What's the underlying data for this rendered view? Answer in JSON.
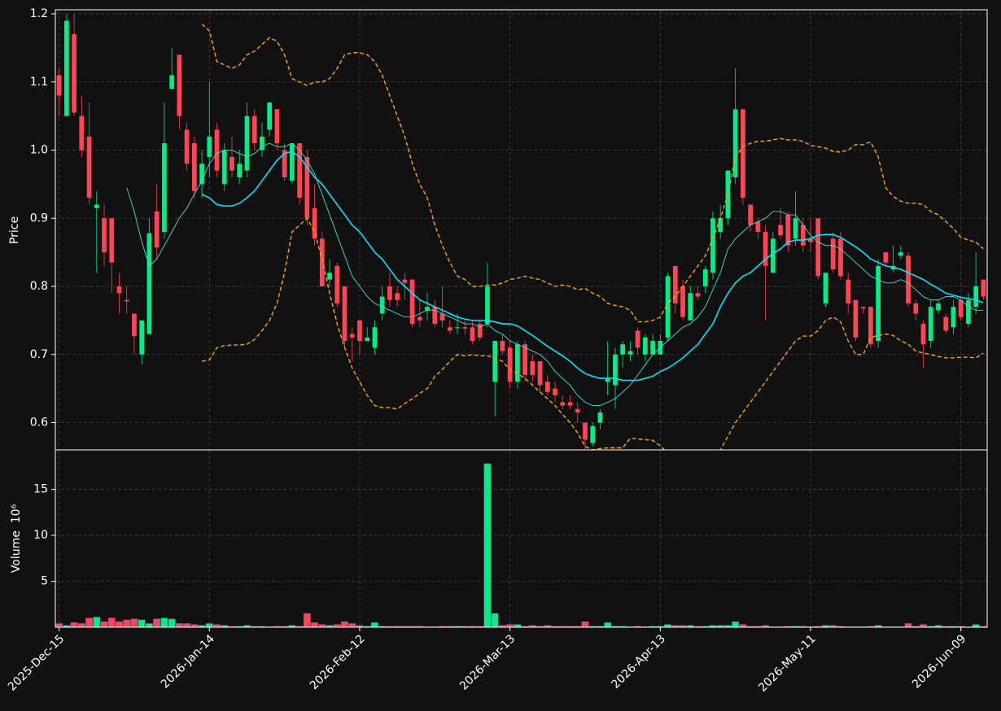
{
  "chart_data": {
    "type": "candlestick",
    "ylabel": "Price",
    "volume_ylabel": "Volume  10⁶",
    "categories": [
      "2025-Dec-15",
      null,
      null,
      null,
      null,
      null,
      null,
      null,
      null,
      null,
      null,
      null,
      null,
      null,
      null,
      null,
      null,
      null,
      null,
      null,
      "2026-Jan-14",
      null,
      null,
      null,
      null,
      null,
      null,
      null,
      null,
      null,
      null,
      null,
      null,
      null,
      null,
      null,
      null,
      null,
      null,
      null,
      "2026-Feb-12",
      null,
      null,
      null,
      null,
      null,
      null,
      null,
      null,
      null,
      null,
      null,
      null,
      null,
      null,
      null,
      null,
      null,
      null,
      null,
      "2026-Mar-13",
      null,
      null,
      null,
      null,
      null,
      null,
      null,
      null,
      null,
      null,
      null,
      null,
      null,
      null,
      null,
      null,
      null,
      null,
      null,
      "2026-Apr-13",
      null,
      null,
      null,
      null,
      null,
      null,
      null,
      null,
      null,
      null,
      null,
      null,
      null,
      null,
      null,
      null,
      null,
      null,
      null,
      "2026-May-11",
      null,
      null,
      null,
      null,
      null,
      null,
      null,
      null,
      null,
      null,
      null,
      null,
      null,
      null,
      null,
      null,
      null,
      null,
      null,
      "2026-Jun-09",
      null,
      null,
      null
    ],
    "open": [
      1.11,
      1.05,
      1.17,
      1.05,
      1.02,
      0.915,
      0.9,
      0.9,
      0.8,
      0.78,
      0.76,
      0.7,
      0.73,
      0.91,
      0.88,
      1.09,
      1.14,
      1.03,
      1.01,
      0.95,
      0.99,
      1.03,
      0.95,
      0.99,
      0.96,
      0.97,
      1.05,
      1.0,
      1.03,
      1.06,
      1.0,
      0.955,
      1.01,
      0.99,
      0.915,
      0.87,
      0.81,
      0.83,
      0.8,
      0.73,
      0.75,
      0.72,
      0.71,
      0.76,
      0.8,
      0.79,
      0.81,
      0.81,
      0.755,
      0.765,
      0.77,
      0.76,
      0.74,
      0.74,
      0.74,
      0.74,
      0.745,
      0.745,
      0.66,
      0.72,
      0.71,
      0.66,
      0.715,
      0.69,
      0.69,
      0.66,
      0.65,
      0.63,
      0.63,
      0.62,
      0.6,
      0.57,
      0.6,
      0.66,
      0.655,
      0.7,
      0.7,
      0.735,
      0.7,
      0.7,
      0.7,
      0.725,
      0.83,
      0.8,
      0.75,
      0.79,
      0.8,
      0.82,
      0.88,
      0.9,
      0.96,
      1.06,
      0.92,
      0.895,
      0.88,
      0.82,
      0.89,
      0.905,
      0.87,
      0.89,
      0.87,
      0.9,
      0.775,
      0.87,
      0.87,
      0.81,
      0.78,
      0.77,
      0.77,
      0.72,
      0.85,
      0.825,
      0.845,
      0.845,
      0.775,
      0.745,
      0.72,
      0.765,
      0.755,
      0.74,
      0.78,
      0.745,
      0.77,
      0.81
    ],
    "high": [
      1.12,
      1.2,
      1.2,
      1.08,
      1.07,
      0.94,
      0.92,
      0.9,
      0.82,
      0.8,
      0.76,
      0.75,
      0.9,
      0.95,
      1.07,
      1.15,
      1.14,
      1.04,
      1.02,
      1.0,
      1.1,
      1.04,
      1.01,
      1.02,
      1.0,
      1.07,
      1.06,
      1.04,
      1.07,
      1.06,
      1.01,
      1.01,
      1.01,
      1.0,
      0.95,
      0.88,
      0.84,
      0.835,
      0.8,
      0.74,
      0.75,
      0.74,
      0.75,
      0.8,
      0.82,
      0.8,
      0.82,
      0.81,
      0.78,
      0.79,
      0.78,
      0.8,
      0.75,
      0.76,
      0.75,
      0.75,
      0.75,
      0.835,
      0.72,
      0.73,
      0.72,
      0.72,
      0.72,
      0.7,
      0.69,
      0.67,
      0.66,
      0.64,
      0.64,
      0.63,
      0.6,
      0.6,
      0.62,
      0.72,
      0.71,
      0.72,
      0.72,
      0.74,
      0.73,
      0.73,
      0.73,
      0.82,
      0.83,
      0.81,
      0.8,
      0.8,
      0.83,
      0.91,
      0.92,
      0.97,
      1.12,
      1.06,
      0.92,
      0.9,
      0.89,
      0.88,
      0.915,
      0.91,
      0.94,
      0.9,
      0.9,
      0.9,
      0.82,
      0.88,
      0.88,
      0.82,
      0.78,
      0.77,
      0.77,
      0.84,
      0.85,
      0.86,
      0.86,
      0.85,
      0.78,
      0.75,
      0.78,
      0.78,
      0.76,
      0.78,
      0.785,
      0.79,
      0.85,
      0.81
    ],
    "low": [
      1.05,
      1.05,
      1.05,
      0.99,
      0.92,
      0.82,
      0.83,
      0.79,
      0.76,
      0.76,
      0.7,
      0.685,
      0.73,
      0.84,
      0.87,
      1.09,
      1.03,
      0.97,
      0.93,
      0.93,
      0.96,
      0.96,
      0.94,
      0.96,
      0.95,
      0.96,
      1.0,
      0.99,
      1.02,
      1.0,
      0.955,
      0.95,
      0.92,
      0.89,
      0.86,
      0.8,
      0.8,
      0.77,
      0.71,
      0.69,
      0.7,
      0.72,
      0.7,
      0.75,
      0.77,
      0.77,
      0.78,
      0.74,
      0.74,
      0.75,
      0.74,
      0.74,
      0.73,
      0.73,
      0.73,
      0.715,
      0.72,
      0.74,
      0.61,
      0.7,
      0.65,
      0.65,
      0.66,
      0.66,
      0.645,
      0.64,
      0.63,
      0.62,
      0.62,
      0.6,
      0.56,
      0.565,
      0.59,
      0.64,
      0.62,
      0.68,
      0.69,
      0.7,
      0.69,
      0.7,
      0.7,
      0.72,
      0.76,
      0.75,
      0.75,
      0.78,
      0.79,
      0.81,
      0.87,
      0.89,
      0.95,
      0.92,
      0.88,
      0.87,
      0.75,
      0.82,
      0.87,
      0.85,
      0.86,
      0.85,
      0.85,
      0.81,
      0.77,
      0.82,
      0.81,
      0.76,
      0.72,
      0.76,
      0.71,
      0.71,
      0.83,
      0.82,
      0.84,
      0.77,
      0.75,
      0.68,
      0.71,
      0.76,
      0.73,
      0.73,
      0.75,
      0.74,
      0.76,
      0.78
    ],
    "close": [
      1.08,
      1.19,
      1.055,
      1.0,
      0.93,
      0.92,
      0.85,
      0.835,
      0.79,
      0.778,
      0.727,
      0.75,
      0.878,
      0.857,
      1.01,
      1.11,
      1.05,
      0.98,
      0.94,
      0.98,
      1.02,
      0.97,
      1.0,
      0.97,
      0.98,
      1.05,
      1.01,
      1.02,
      1.07,
      1.01,
      0.96,
      1.01,
      0.93,
      0.9,
      0.87,
      0.8,
      0.82,
      0.775,
      0.72,
      0.725,
      0.72,
      0.725,
      0.74,
      0.785,
      0.78,
      0.78,
      0.805,
      0.745,
      0.75,
      0.77,
      0.745,
      0.75,
      0.735,
      0.74,
      0.738,
      0.72,
      0.725,
      0.8,
      0.72,
      0.705,
      0.66,
      0.715,
      0.67,
      0.67,
      0.655,
      0.645,
      0.64,
      0.625,
      0.625,
      0.615,
      0.575,
      0.595,
      0.615,
      0.665,
      0.7,
      0.715,
      0.705,
      0.71,
      0.725,
      0.72,
      0.72,
      0.815,
      0.775,
      0.755,
      0.79,
      0.785,
      0.825,
      0.9,
      0.9,
      0.97,
      1.06,
      0.93,
      0.89,
      0.88,
      0.83,
      0.87,
      0.875,
      0.86,
      0.9,
      0.86,
      0.865,
      0.815,
      0.82,
      0.825,
      0.815,
      0.775,
      0.725,
      0.768,
      0.715,
      0.83,
      0.835,
      0.83,
      0.85,
      0.775,
      0.76,
      0.715,
      0.77,
      0.775,
      0.735,
      0.77,
      0.755,
      0.78,
      0.8,
      0.785
    ],
    "volume": [
      0.4,
      0.2,
      0.5,
      0.4,
      1.0,
      1.1,
      0.6,
      1.0,
      0.6,
      0.8,
      0.9,
      0.8,
      0.4,
      0.9,
      1.0,
      0.9,
      0.4,
      0.4,
      0.3,
      0.2,
      0.4,
      0.3,
      0.2,
      0.1,
      0.1,
      0.2,
      0.1,
      0.1,
      0.05,
      0.1,
      0.1,
      0.2,
      0.1,
      1.5,
      0.5,
      0.3,
      0.2,
      0.3,
      0.6,
      0.4,
      0.2,
      0.1,
      0.5,
      0.1,
      0.1,
      0.1,
      0.1,
      0.1,
      0.1,
      0.05,
      0.05,
      0.1,
      0.1,
      0.1,
      0.1,
      0.1,
      0.1,
      17.8,
      1.5,
      0.2,
      0.3,
      0.3,
      0.1,
      0.2,
      0.1,
      0.2,
      0.1,
      0.1,
      0.1,
      0.1,
      0.6,
      0.1,
      0.1,
      0.5,
      0.1,
      0.1,
      0.05,
      0.1,
      0.05,
      0.1,
      0.1,
      0.3,
      0.2,
      0.2,
      0.2,
      0.1,
      0.1,
      0.2,
      0.2,
      0.2,
      0.6,
      0.3,
      0.1,
      0.1,
      0.2,
      0.05,
      0.05,
      0.1,
      0.1,
      0.1,
      0.05,
      0.1,
      0.2,
      0.2,
      0.1,
      0.05,
      0.05,
      0.05,
      0.1,
      0.2,
      0.05,
      0.05,
      0.05,
      0.4,
      0.1,
      0.3,
      0.1,
      0.2,
      0.1,
      0.1,
      0.1,
      0.05,
      0.3,
      0.1
    ],
    "up_color": "#00ee88",
    "down_color": "#ff4455",
    "overlays": [
      {
        "color": "#40e0d0",
        "linewidth": 0.9,
        "style": "solid",
        "values": [
          null,
          null,
          null,
          null,
          null,
          null,
          null,
          null,
          null,
          0.945,
          0.91,
          0.865,
          0.83,
          0.84,
          0.86,
          0.88,
          0.9,
          0.915,
          0.935,
          0.955,
          0.98,
          0.995,
          1.0,
          1.0,
          0.995,
          0.99,
          0.995,
          1.005,
          1.01,
          1.005,
          1.005,
          1.01,
          1.0,
          0.985,
          0.965,
          0.935,
          0.905,
          0.875,
          0.845,
          0.815,
          0.8,
          0.785,
          0.775,
          0.77,
          0.765,
          0.76,
          0.755,
          0.755,
          0.76,
          0.765,
          0.765,
          0.76,
          0.755,
          0.75,
          0.745,
          0.745,
          0.74,
          0.745,
          0.735,
          0.73,
          0.72,
          0.715,
          0.71,
          0.705,
          0.7,
          0.69,
          0.675,
          0.665,
          0.655,
          0.64,
          0.63,
          0.625,
          0.625,
          0.63,
          0.635,
          0.645,
          0.655,
          0.67,
          0.685,
          0.7,
          0.71,
          0.72,
          0.73,
          0.74,
          0.745,
          0.755,
          0.77,
          0.795,
          0.82,
          0.855,
          0.87,
          0.88,
          0.89,
          0.895,
          0.9,
          0.91,
          0.91,
          0.905,
          0.905,
          0.89,
          0.875,
          0.865,
          0.86,
          0.86,
          0.855,
          0.845,
          0.835,
          0.825,
          0.815,
          0.81,
          0.805,
          0.805,
          0.81,
          0.805,
          0.795,
          0.785,
          0.78,
          0.78,
          0.785,
          0.785,
          0.78,
          0.77,
          0.765,
          0.765
        ]
      },
      {
        "color": "#00e5ff",
        "linewidth": 1.6,
        "style": "solid",
        "values": [
          null,
          null,
          null,
          null,
          null,
          null,
          null,
          null,
          null,
          null,
          null,
          null,
          null,
          null,
          null,
          null,
          null,
          null,
          null,
          0.935,
          0.93,
          0.92,
          0.918,
          0.918,
          0.922,
          0.93,
          0.94,
          0.955,
          0.97,
          0.985,
          0.995,
          0.998,
          0.99,
          0.975,
          0.96,
          0.95,
          0.935,
          0.92,
          0.905,
          0.89,
          0.88,
          0.865,
          0.85,
          0.84,
          0.825,
          0.81,
          0.8,
          0.79,
          0.78,
          0.775,
          0.77,
          0.765,
          0.76,
          0.755,
          0.752,
          0.75,
          0.75,
          0.75,
          0.748,
          0.745,
          0.745,
          0.742,
          0.735,
          0.728,
          0.72,
          0.712,
          0.705,
          0.698,
          0.69,
          0.68,
          0.672,
          0.668,
          0.665,
          0.665,
          0.665,
          0.662,
          0.662,
          0.662,
          0.665,
          0.668,
          0.675,
          0.68,
          0.687,
          0.695,
          0.705,
          0.715,
          0.73,
          0.745,
          0.77,
          0.79,
          0.805,
          0.815,
          0.82,
          0.83,
          0.84,
          0.848,
          0.855,
          0.865,
          0.868,
          0.868,
          0.87,
          0.875,
          0.876,
          0.876,
          0.872,
          0.865,
          0.858,
          0.85,
          0.84,
          0.835,
          0.83,
          0.828,
          0.825,
          0.82,
          0.815,
          0.81,
          0.803,
          0.797,
          0.79,
          0.787,
          0.784,
          0.782,
          0.78,
          0.776
        ]
      },
      {
        "color": "#ffa500",
        "linewidth": 1.4,
        "style": "dashed",
        "values": [
          null,
          null,
          null,
          null,
          null,
          null,
          null,
          null,
          null,
          null,
          null,
          null,
          null,
          null,
          null,
          null,
          null,
          null,
          null,
          1.185,
          1.175,
          1.13,
          1.125,
          1.12,
          1.125,
          1.14,
          1.145,
          1.155,
          1.165,
          1.16,
          1.14,
          1.105,
          1.1,
          1.095,
          1.1,
          1.1,
          1.105,
          1.12,
          1.14,
          1.143,
          1.143,
          1.14,
          1.13,
          1.11,
          1.08,
          1.05,
          1.02,
          0.98,
          0.95,
          0.93,
          0.89,
          0.86,
          0.835,
          0.815,
          0.81,
          0.8,
          0.8,
          0.802,
          0.802,
          0.805,
          0.81,
          0.812,
          0.815,
          0.812,
          0.81,
          0.805,
          0.8,
          0.802,
          0.8,
          0.795,
          0.797,
          0.79,
          0.785,
          0.775,
          0.772,
          0.77,
          0.765,
          0.748,
          0.748,
          0.75,
          0.755,
          0.775,
          0.785,
          0.8,
          0.815,
          0.83,
          0.845,
          0.87,
          0.9,
          0.935,
          0.99,
          1.005,
          1.01,
          1.013,
          1.013,
          1.015,
          1.017,
          1.015,
          1.015,
          1.013,
          1.007,
          1.005,
          1.003,
          0.998,
          0.997,
          1.0,
          1.008,
          1.008,
          1.012,
          0.99,
          0.945,
          0.932,
          0.925,
          0.922,
          0.922,
          0.92,
          0.91,
          0.905,
          0.895,
          0.885,
          0.872,
          0.868,
          0.865,
          0.855
        ]
      },
      {
        "color": "#ffa500",
        "linewidth": 1.4,
        "style": "dashed",
        "values": [
          null,
          null,
          null,
          null,
          null,
          null,
          null,
          null,
          null,
          null,
          null,
          null,
          null,
          null,
          null,
          null,
          null,
          null,
          null,
          0.69,
          0.692,
          0.71,
          0.713,
          0.714,
          0.714,
          0.715,
          0.722,
          0.735,
          0.75,
          0.775,
          0.82,
          0.88,
          0.89,
          0.9,
          0.88,
          0.84,
          0.79,
          0.745,
          0.71,
          0.68,
          0.66,
          0.64,
          0.625,
          0.622,
          0.622,
          0.62,
          0.628,
          0.635,
          0.643,
          0.65,
          0.668,
          0.678,
          0.69,
          0.7,
          0.698,
          0.7,
          0.698,
          0.698,
          0.695,
          0.69,
          0.678,
          0.672,
          0.665,
          0.655,
          0.645,
          0.635,
          0.625,
          0.612,
          0.6,
          0.585,
          0.565,
          0.56,
          0.562,
          0.563,
          0.563,
          0.563,
          0.577,
          0.576,
          0.575,
          0.574,
          0.566,
          0.555,
          0.55,
          0.545,
          0.54,
          0.54,
          0.545,
          0.55,
          0.56,
          0.58,
          0.6,
          0.615,
          0.63,
          0.645,
          0.66,
          0.675,
          0.69,
          0.705,
          0.72,
          0.727,
          0.727,
          0.735,
          0.75,
          0.755,
          0.748,
          0.72,
          0.7,
          0.7,
          0.725,
          0.728,
          0.73,
          0.728,
          0.72,
          0.715,
          0.705,
          0.702,
          0.7,
          0.697,
          0.695,
          0.695,
          0.696,
          0.696,
          0.695,
          0.702
        ]
      }
    ],
    "ylim": [
      0.56,
      1.206
    ],
    "yticks": [
      0.6,
      0.7,
      0.8,
      0.9,
      {
        "value": 1,
        "label": "1.0"
      },
      1.1,
      1.2
    ],
    "volume_ylim": [
      0,
      19.3
    ],
    "volume_yticks": [
      5,
      10,
      15
    ],
    "grid": true
  }
}
